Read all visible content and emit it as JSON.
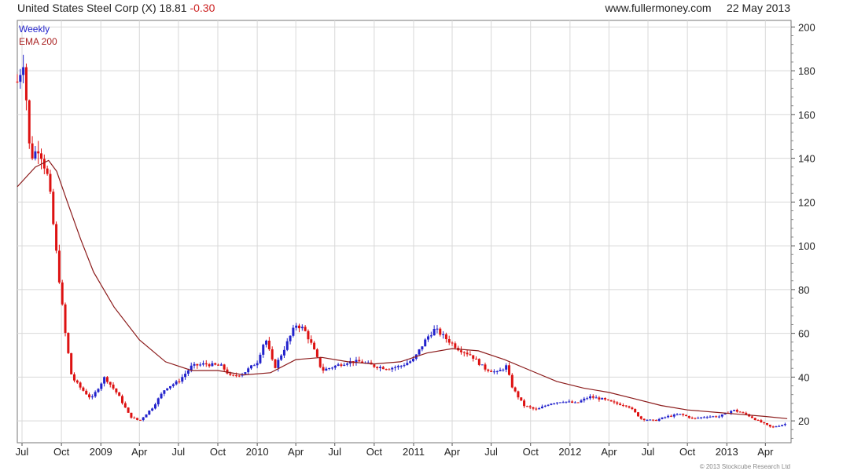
{
  "header": {
    "title": "United States Steel Corp (X)",
    "price": "18.81",
    "change": "-0.30",
    "site": "www.fullermoney.com",
    "date": "22 May 2013"
  },
  "legend": {
    "weekly": "Weekly",
    "ema": "EMA 200"
  },
  "copyright": "© 2013 Stockcube Research Ltd",
  "colors": {
    "up": "#2222cc",
    "down": "#dd1111",
    "ema": "#8b1a1a",
    "grid": "#d8d8d8"
  },
  "chart_data": {
    "type": "line",
    "title": "United States Steel Corp (X) 18.81 -0.30",
    "ylim": [
      10,
      203
    ],
    "y_ticks": [
      20,
      40,
      60,
      80,
      100,
      120,
      140,
      160,
      180,
      200
    ],
    "y_axis_side": "right",
    "x_range": [
      "2008-06-20",
      "2013-05-31"
    ],
    "x_ticks": [
      {
        "label": "Jul",
        "date": "2008-07-01"
      },
      {
        "label": "Oct",
        "date": "2008-10-01"
      },
      {
        "label": "2009",
        "date": "2009-01-01"
      },
      {
        "label": "Apr",
        "date": "2009-04-01"
      },
      {
        "label": "Jul",
        "date": "2009-07-01"
      },
      {
        "label": "Oct",
        "date": "2009-10-01"
      },
      {
        "label": "2010",
        "date": "2010-01-01"
      },
      {
        "label": "Apr",
        "date": "2010-04-01"
      },
      {
        "label": "Jul",
        "date": "2010-07-01"
      },
      {
        "label": "Oct",
        "date": "2010-10-01"
      },
      {
        "label": "2011",
        "date": "2011-01-01"
      },
      {
        "label": "Apr",
        "date": "2011-04-01"
      },
      {
        "label": "Jul",
        "date": "2011-07-01"
      },
      {
        "label": "Oct",
        "date": "2011-10-01"
      },
      {
        "label": "2012",
        "date": "2012-01-01"
      },
      {
        "label": "Apr",
        "date": "2012-04-01"
      },
      {
        "label": "Jul",
        "date": "2012-07-01"
      },
      {
        "label": "Oct",
        "date": "2012-10-01"
      },
      {
        "label": "2013",
        "date": "2013-01-01"
      },
      {
        "label": "Apr",
        "date": "2013-04-01"
      }
    ],
    "grid": true,
    "series": [
      {
        "name": "Weekly",
        "style": "ohlc",
        "x": [
          "2008-06-20",
          "2008-07-05",
          "2008-07-20",
          "2008-08-10",
          "2008-09-01",
          "2008-09-20",
          "2008-10-10",
          "2008-10-25",
          "2008-11-15",
          "2008-12-10",
          "2009-01-10",
          "2009-02-10",
          "2009-03-10",
          "2009-04-01",
          "2009-05-01",
          "2009-06-01",
          "2009-07-01",
          "2009-08-01",
          "2009-09-01",
          "2009-10-10",
          "2009-11-01",
          "2009-12-01",
          "2010-01-01",
          "2010-01-20",
          "2010-02-10",
          "2010-03-10",
          "2010-04-01",
          "2010-04-20",
          "2010-05-10",
          "2010-06-01",
          "2010-07-01",
          "2010-08-01",
          "2010-09-01",
          "2010-10-01",
          "2010-11-01",
          "2010-12-01",
          "2011-01-01",
          "2011-02-01",
          "2011-02-20",
          "2011-03-15",
          "2011-04-15",
          "2011-05-15",
          "2011-06-15",
          "2011-07-15",
          "2011-08-05",
          "2011-08-20",
          "2011-09-15",
          "2011-10-15",
          "2011-11-15",
          "2011-12-15",
          "2012-01-15",
          "2012-02-15",
          "2012-03-15",
          "2012-04-15",
          "2012-05-15",
          "2012-06-15",
          "2012-07-15",
          "2012-08-15",
          "2012-09-15",
          "2012-10-15",
          "2012-11-15",
          "2012-12-15",
          "2013-01-15",
          "2013-02-15",
          "2013-03-15",
          "2013-04-15",
          "2013-05-22"
        ],
        "y": [
          175,
          185,
          140,
          145,
          130,
          95,
          60,
          40,
          35,
          30,
          40,
          32,
          22,
          20,
          26,
          35,
          38,
          45,
          46,
          45,
          40,
          42,
          47,
          58,
          44,
          55,
          64,
          62,
          54,
          43,
          45,
          47,
          47,
          45,
          44,
          45,
          48,
          58,
          62,
          58,
          53,
          50,
          44,
          42,
          45,
          35,
          27,
          25,
          28,
          29,
          28,
          31,
          30,
          28,
          27,
          21,
          20,
          22,
          23,
          21,
          22,
          22,
          25,
          23,
          20,
          17,
          18.81
        ]
      },
      {
        "name": "EMA 200",
        "style": "line",
        "x": [
          "2008-06-20",
          "2008-08-01",
          "2008-09-01",
          "2008-09-20",
          "2008-10-15",
          "2008-11-15",
          "2008-12-15",
          "2009-02-01",
          "2009-04-01",
          "2009-06-01",
          "2009-08-01",
          "2009-10-01",
          "2009-12-01",
          "2010-02-01",
          "2010-04-01",
          "2010-06-01",
          "2010-08-01",
          "2010-10-01",
          "2010-12-01",
          "2011-02-01",
          "2011-04-01",
          "2011-06-01",
          "2011-08-01",
          "2011-10-01",
          "2011-12-01",
          "2012-02-01",
          "2012-04-01",
          "2012-06-01",
          "2012-08-01",
          "2012-10-01",
          "2012-12-01",
          "2013-02-01",
          "2013-04-01",
          "2013-05-22"
        ],
        "y": [
          127,
          136,
          139,
          134,
          120,
          103,
          88,
          72,
          57,
          47,
          43,
          43,
          41,
          42,
          48,
          49,
          47,
          46,
          47,
          51,
          53,
          52,
          48,
          43,
          38,
          35,
          33,
          30,
          27,
          25,
          24,
          23,
          22,
          21
        ]
      }
    ]
  }
}
